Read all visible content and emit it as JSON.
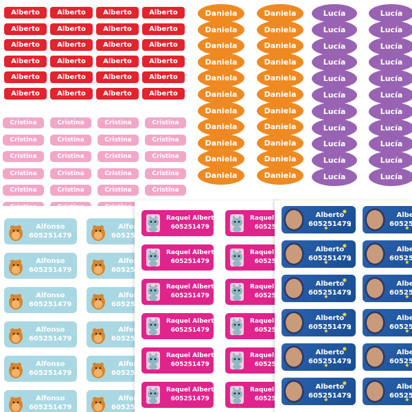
{
  "sheets": {
    "alberto_red": {
      "name": "Alberto",
      "color": "#e3232e"
    },
    "daniela": {
      "name": "Daniela",
      "color": "#ef8a22"
    },
    "lucia": {
      "name": "Lucía",
      "color": "#9963b3"
    },
    "cristina": {
      "name": "Cristina",
      "color": "#f2a7c7"
    },
    "alfonso": {
      "name": "Alfonso",
      "phone": "605251479",
      "color": "#a9d8e3",
      "icon": "hamster-icon"
    },
    "raquel": {
      "name": "Raquel Albert",
      "phone": "605251479",
      "color": "#e0248c",
      "icon": "cat-icon"
    },
    "alberto_photo": {
      "name": "Alberto",
      "phone": "605251479",
      "color": "#1f5aa5",
      "icon": "astronaut-photo"
    }
  }
}
